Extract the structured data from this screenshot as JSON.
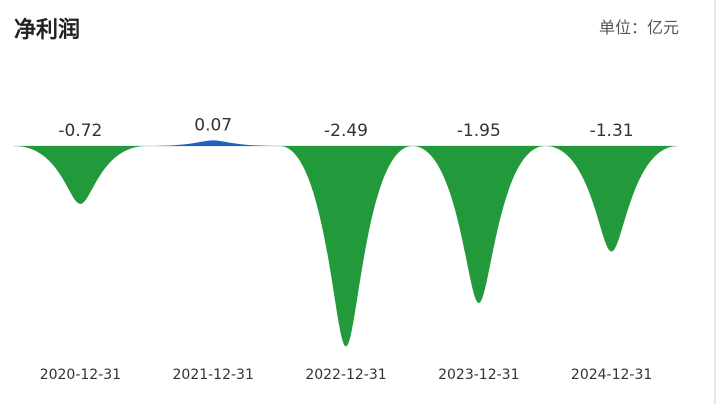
{
  "header": {
    "title": "净利润",
    "unit": "单位：亿元"
  },
  "chart_data": {
    "type": "area",
    "title": "净利润",
    "unit": "单位：亿元",
    "categories": [
      "2020-12-31",
      "2021-12-31",
      "2022-12-31",
      "2023-12-31",
      "2024-12-31"
    ],
    "values": [
      -0.72,
      0.07,
      -2.49,
      -1.95,
      -1.31
    ],
    "value_labels": [
      "-0.72",
      "0.07",
      "-2.49",
      "-1.95",
      "-1.31"
    ],
    "colors": {
      "positive": "#1f5fc8",
      "negative": "#229a3b"
    },
    "grid": false,
    "legend": "none"
  }
}
